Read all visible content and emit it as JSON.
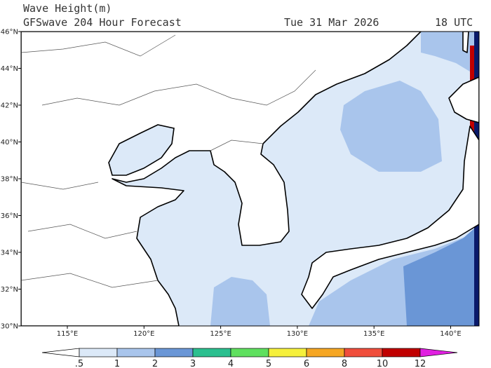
{
  "header": {
    "title": "Wave Height(m)",
    "model": "GFSwave 204 Hour Forecast",
    "date": "Tue 31 Mar 2026",
    "time": "18 UTC"
  },
  "map": {
    "lat_labels": [
      "30°N",
      "32°N",
      "34°N",
      "36°N",
      "38°N",
      "40°N",
      "42°N",
      "44°N",
      "46°N"
    ],
    "lon_labels": [
      "115°E",
      "120°E",
      "125°E",
      "130°E",
      "135°E",
      "140°E"
    ]
  },
  "colorbar": {
    "labels": [
      ".5",
      "1",
      "2",
      "3",
      "4",
      "5",
      "6",
      "8",
      "10",
      "12"
    ],
    "colors": [
      "#ffffff",
      "#dce9f8",
      "#a9c5ec",
      "#6a96d6",
      "#2bbf8f",
      "#5fe05f",
      "#f5f03c",
      "#f5a623",
      "#f04e3c",
      "#c00000",
      "#e020e0"
    ]
  }
}
